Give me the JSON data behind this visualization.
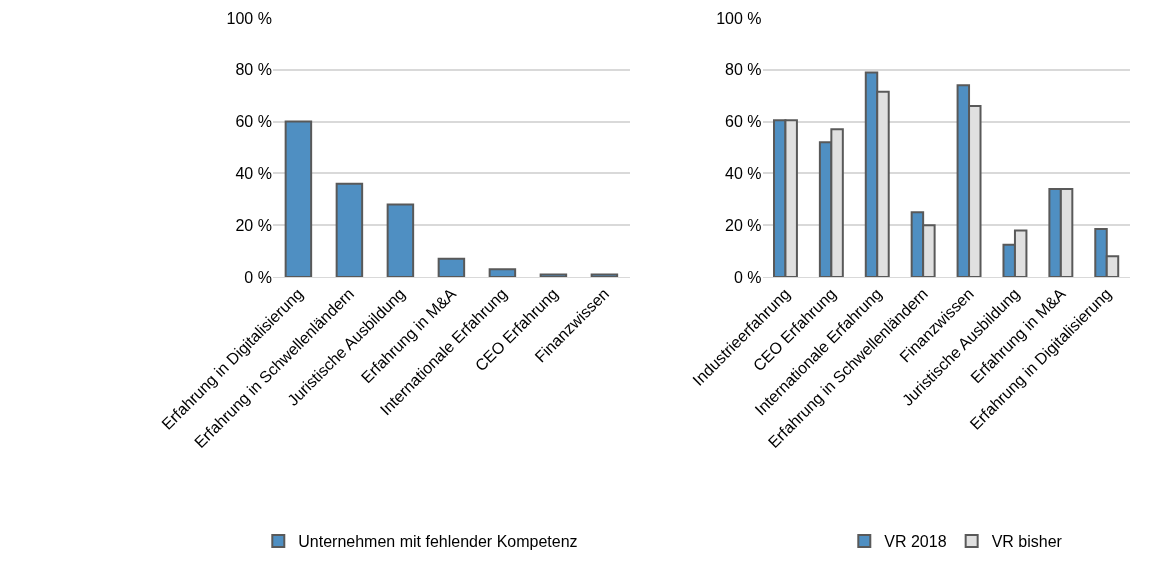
{
  "chart_data": [
    {
      "type": "bar",
      "categories": [
        "Erfahrung in Digitalisierung",
        "Erfahrung in Schwellenländern",
        "Juristische Ausbildung",
        "Erfahrung in M&A",
        "Internationale Erfahrung",
        "CEO Erfahrung",
        "Finanzwissen"
      ],
      "series": [
        {
          "name": "Unternehmen mit fehlender Kompetenz",
          "color": "#4f8fc2",
          "values": [
            60,
            36,
            28,
            7,
            3,
            1,
            1
          ]
        }
      ],
      "ylim": [
        0,
        100
      ],
      "yticks": [
        {
          "value": 0,
          "label": "0 %"
        },
        {
          "value": 20,
          "label": "20 %"
        },
        {
          "value": 40,
          "label": "40 %"
        },
        {
          "value": 60,
          "label": "60 %"
        },
        {
          "value": 80,
          "label": "80 %"
        },
        {
          "value": 100,
          "label": "100 %"
        }
      ],
      "grid": "y",
      "legend": "bottom"
    },
    {
      "type": "bar",
      "categories": [
        "Industrieerfahrung",
        "CEO Erfahrung",
        "Internationale Erfahrung",
        "Erfahrung in Schwellenländern",
        "Finanzwissen",
        "Juristische Ausbildung",
        "Erfahrung in M&A",
        "Erfahrung in Digitalisierung"
      ],
      "series": [
        {
          "name": "VR 2018",
          "color": "#4f8fc2",
          "values": [
            60.5,
            52,
            79,
            25,
            74,
            12.5,
            34,
            18.5
          ]
        },
        {
          "name": "VR bisher",
          "color": "#e0e0e0",
          "values": [
            60.5,
            57,
            71.5,
            20,
            66,
            18,
            34,
            8
          ]
        }
      ],
      "ylim": [
        0,
        100
      ],
      "yticks": [
        {
          "value": 0,
          "label": "0 %"
        },
        {
          "value": 20,
          "label": "20 %"
        },
        {
          "value": 40,
          "label": "40 %"
        },
        {
          "value": 60,
          "label": "60 %"
        },
        {
          "value": 80,
          "label": "80 %"
        },
        {
          "value": 100,
          "label": "100 %"
        }
      ],
      "grid": "y",
      "legend": "bottom"
    }
  ]
}
